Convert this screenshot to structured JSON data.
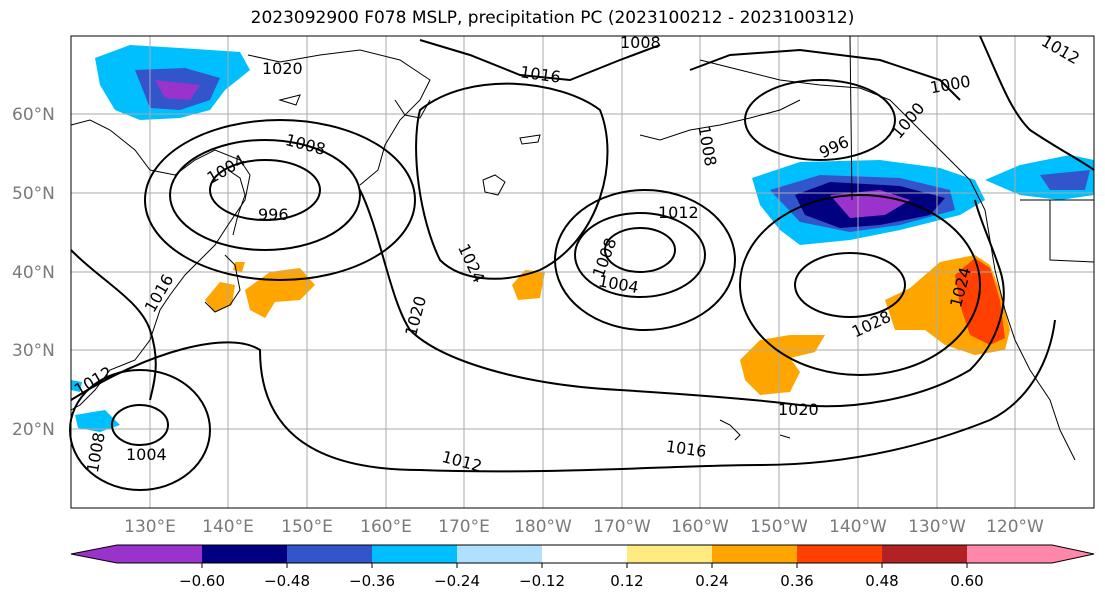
{
  "title": "2023092900 F078 MSLP, precipitation PC (2023100212 - 2023100312)",
  "map": {
    "lon_labels": [
      "130°E",
      "140°E",
      "150°E",
      "160°E",
      "170°E",
      "180°W",
      "170°W",
      "160°W",
      "150°W",
      "140°W",
      "130°W",
      "120°W"
    ],
    "lat_labels": [
      "60°N",
      "50°N",
      "40°N",
      "30°N",
      "20°N"
    ],
    "contour_labels": [
      {
        "id": "c1008a",
        "text": "1008"
      },
      {
        "id": "c1016a",
        "text": "1016"
      },
      {
        "id": "c1020a",
        "text": "1020"
      },
      {
        "id": "c1000a",
        "text": "1000"
      },
      {
        "id": "c1012a",
        "text": "1012"
      },
      {
        "id": "c996a",
        "text": "996"
      },
      {
        "id": "c1008b",
        "text": "1008"
      },
      {
        "id": "c1000b",
        "text": "1000"
      },
      {
        "id": "c1008c",
        "text": "1008"
      },
      {
        "id": "c1004a",
        "text": "1004"
      },
      {
        "id": "c996b",
        "text": "996"
      },
      {
        "id": "c1016b",
        "text": "1016"
      },
      {
        "id": "c1020b",
        "text": "1020"
      },
      {
        "id": "c1024a",
        "text": "1024"
      },
      {
        "id": "c1012b",
        "text": "1012"
      },
      {
        "id": "c1008d",
        "text": "1008"
      },
      {
        "id": "c1004b",
        "text": "1004"
      },
      {
        "id": "c1024b",
        "text": "1024"
      },
      {
        "id": "c1028",
        "text": "1028"
      },
      {
        "id": "c1020c",
        "text": "1020"
      },
      {
        "id": "c1016c",
        "text": "1016"
      },
      {
        "id": "c1012c",
        "text": "1012"
      },
      {
        "id": "c1004c",
        "text": "1004"
      },
      {
        "id": "c1012d",
        "text": "1012"
      },
      {
        "id": "c1008e",
        "text": "1008"
      }
    ]
  },
  "colorbar": {
    "ticks": [
      "−0.60",
      "−0.48",
      "−0.36",
      "−0.24",
      "−0.12",
      "0.12",
      "0.24",
      "0.36",
      "0.48",
      "0.60"
    ],
    "colors": [
      "#9933cc",
      "#000080",
      "#3355cc",
      "#00bfff",
      "#b0e0ff",
      "#ffffff",
      "#ffeb80",
      "#ffa500",
      "#ff4000",
      "#b22222",
      "#ff88aa"
    ]
  }
}
